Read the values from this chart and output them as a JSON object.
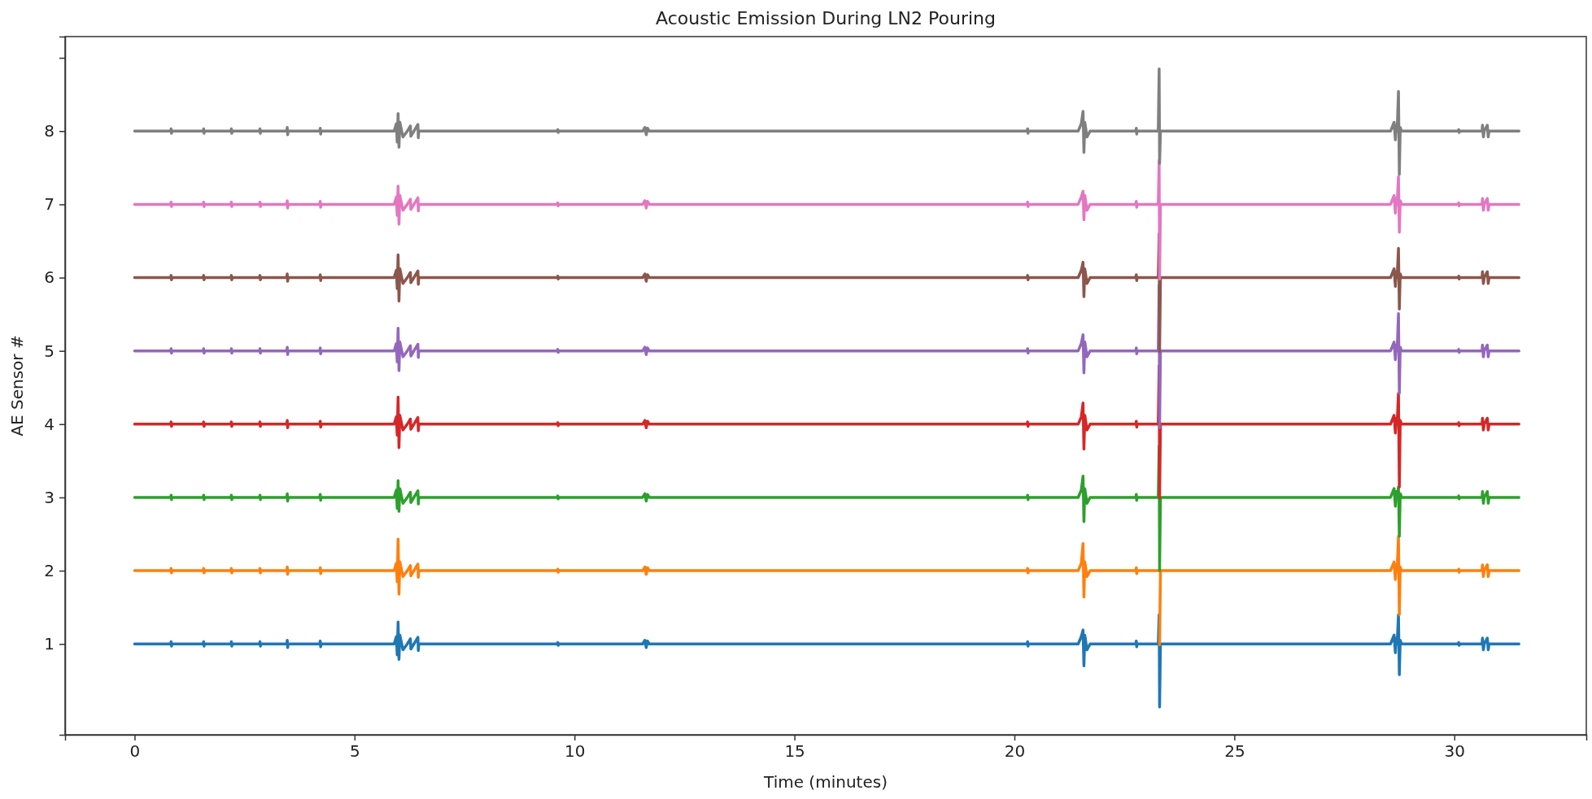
{
  "chart_data": {
    "type": "line",
    "title": "Acoustic Emission During LN2 Pouring",
    "xlabel": "Time (minutes)",
    "ylabel": "AE Sensor #",
    "xlim": [
      -1.58,
      33.0
    ],
    "ylim": [
      -0.24,
      9.29
    ],
    "xticks": [
      0,
      5,
      10,
      15,
      20,
      25,
      30
    ],
    "yticks": [
      1,
      2,
      3,
      4,
      5,
      6,
      7,
      8,
      {
        "value": 9,
        "label": null
      }
    ],
    "grid": false,
    "x": [
      0,
      0.82,
      0.83,
      0.84,
      0.85,
      1.56,
      1.57,
      1.58,
      1.59,
      2.19,
      2.2,
      2.21,
      2.22,
      2.84,
      2.85,
      2.86,
      2.87,
      3.46,
      3.47,
      3.48,
      3.49,
      4.21,
      4.22,
      4.23,
      4.24,
      5.9,
      5.95,
      5.97,
      5.99,
      6.01,
      6.03,
      6.1,
      6.2,
      6.27,
      6.28,
      6.35,
      6.44,
      6.45,
      6.46,
      9.61,
      9.62,
      9.63,
      9.64,
      11.55,
      11.6,
      11.63,
      11.66,
      11.7,
      20.29,
      20.3,
      20.31,
      20.32,
      21.45,
      21.52,
      21.56,
      21.58,
      21.6,
      21.65,
      21.72,
      22.76,
      22.77,
      22.78,
      22.79,
      23.27,
      23.29,
      23.3,
      23.32,
      28.55,
      28.63,
      28.66,
      28.68,
      28.7,
      28.73,
      28.75,
      28.77,
      28.8,
      30.09,
      30.1,
      30.11,
      30.12,
      30.63,
      30.64,
      30.66,
      30.68,
      30.75,
      30.77,
      30.79,
      31.47
    ],
    "series": [
      {
        "color": "#1f77b4",
        "values": [
          1,
          1,
          1.03,
          0.97,
          1,
          1,
          1.03,
          0.97,
          1,
          1,
          1.03,
          0.97,
          1,
          1,
          1.03,
          0.97,
          1,
          1,
          1.05,
          0.95,
          1,
          1,
          1.04,
          0.96,
          1,
          1,
          1.1,
          0.85,
          1.3,
          0.79,
          1.12,
          0.92,
          1,
          1.07,
          0.93,
          1,
          1.09,
          0.91,
          1,
          1,
          1.02,
          0.98,
          1,
          1,
          1.05,
          0.95,
          1.04,
          1,
          1,
          1.03,
          0.97,
          1,
          1,
          1.1,
          1.19,
          0.7,
          1.12,
          0.92,
          1,
          1,
          1.04,
          0.96,
          1,
          1,
          1.4,
          0.14,
          1,
          1,
          1.12,
          0.88,
          1.08,
          1,
          1.4,
          0.58,
          1.05,
          1,
          1,
          1.02,
          0.98,
          1,
          1,
          1.08,
          0.92,
          1,
          1.08,
          0.92,
          1,
          1
        ]
      },
      {
        "color": "#ff7f0e",
        "values": [
          2,
          2,
          2.03,
          1.97,
          2,
          2,
          2.03,
          1.97,
          2,
          2,
          2.03,
          1.97,
          2,
          2,
          2.03,
          1.97,
          2,
          2,
          2.05,
          1.95,
          2,
          2,
          2.04,
          1.96,
          2,
          2,
          2.1,
          1.85,
          2.43,
          1.68,
          2.12,
          1.92,
          2,
          2.07,
          1.93,
          2,
          2.09,
          1.91,
          2,
          2,
          2.02,
          1.98,
          2,
          2,
          2.05,
          1.95,
          2.04,
          2,
          2,
          2.03,
          1.97,
          2,
          2,
          2.1,
          2.37,
          1.64,
          2.12,
          1.92,
          2,
          2,
          2.04,
          1.96,
          2,
          2,
          null,
          0.99,
          2,
          2,
          2.12,
          1.88,
          2.08,
          2,
          2.47,
          1.4,
          2.05,
          2,
          2,
          2.02,
          1.98,
          2,
          2,
          2.08,
          1.92,
          2,
          2.08,
          1.92,
          2,
          2
        ]
      },
      {
        "color": "#2ca02c",
        "values": [
          3,
          3,
          3.03,
          2.97,
          3,
          3,
          3.03,
          2.97,
          3,
          3,
          3.03,
          2.97,
          3,
          3,
          3.03,
          2.97,
          3,
          3,
          3.05,
          2.95,
          3,
          3,
          3.04,
          2.96,
          3,
          3,
          3.1,
          2.85,
          3.23,
          2.81,
          3.12,
          2.92,
          3,
          3.07,
          2.93,
          3,
          3.09,
          2.91,
          3,
          3,
          3.02,
          2.98,
          3,
          3,
          3.05,
          2.95,
          3.04,
          3,
          3,
          3.03,
          2.97,
          3,
          3,
          3.1,
          3.29,
          2.67,
          3.12,
          2.92,
          3,
          3,
          3.04,
          2.96,
          3,
          3,
          3.7,
          2,
          3,
          3,
          3.12,
          2.88,
          3.08,
          3,
          3.14,
          2.47,
          3.05,
          3,
          3,
          3.02,
          2.98,
          3,
          3,
          3.08,
          2.92,
          3,
          3.08,
          2.92,
          3,
          3
        ]
      },
      {
        "color": "#d62728",
        "values": [
          4,
          4,
          4.03,
          3.97,
          4,
          4,
          4.03,
          3.97,
          4,
          4,
          4.03,
          3.97,
          4,
          4,
          4.03,
          3.97,
          4,
          4,
          4.05,
          3.95,
          4,
          4,
          4.04,
          3.96,
          4,
          4,
          4.1,
          3.85,
          4.37,
          3.68,
          4.12,
          3.92,
          4,
          4.07,
          3.93,
          4,
          4.09,
          3.91,
          4,
          4,
          4.02,
          3.98,
          4,
          4,
          4.05,
          3.95,
          4.04,
          4,
          4,
          4.03,
          3.97,
          4,
          4,
          4.1,
          4.29,
          3.66,
          4.12,
          3.92,
          4,
          4,
          4.04,
          3.96,
          4,
          4,
          4.8,
          2.99,
          4,
          4,
          4.12,
          3.88,
          4.08,
          4,
          4.42,
          3.14,
          4.05,
          4,
          4,
          4.02,
          3.98,
          4,
          4,
          4.08,
          3.92,
          4,
          4.08,
          3.92,
          4,
          4
        ]
      },
      {
        "color": "#9467bd",
        "values": [
          5,
          5,
          5.03,
          4.97,
          5,
          5,
          5.03,
          4.97,
          5,
          5,
          5.03,
          4.97,
          5,
          5,
          5.03,
          4.97,
          5,
          5,
          5.05,
          4.95,
          5,
          5,
          5.04,
          4.96,
          5,
          5,
          5.1,
          4.85,
          5.31,
          4.73,
          5.12,
          4.92,
          5,
          5.07,
          4.93,
          5,
          5.09,
          4.91,
          5,
          5,
          5.02,
          4.98,
          5,
          5,
          5.05,
          4.95,
          5.04,
          5,
          5,
          5.03,
          4.97,
          5,
          5,
          5.1,
          5.22,
          4.7,
          5.12,
          4.92,
          5,
          5,
          5.04,
          4.96,
          5,
          5,
          5.9,
          3.95,
          5,
          5,
          5.12,
          4.88,
          5.08,
          5,
          5.51,
          4.42,
          5.05,
          5,
          5,
          5.02,
          4.98,
          5,
          5,
          5.08,
          4.92,
          5,
          5.08,
          4.92,
          5,
          5
        ]
      },
      {
        "color": "#8c564b",
        "values": [
          6,
          6,
          6.03,
          5.97,
          6,
          6,
          6.03,
          5.97,
          6,
          6,
          6.03,
          5.97,
          6,
          6,
          6.03,
          5.97,
          6,
          6,
          6.05,
          5.95,
          6,
          6,
          6.04,
          5.96,
          6,
          6,
          6.1,
          5.85,
          6.31,
          5.68,
          6.12,
          5.92,
          6,
          6.07,
          5.93,
          6,
          6.09,
          5.91,
          6,
          6,
          6.02,
          5.98,
          6,
          6,
          6.05,
          5.95,
          6.04,
          6,
          6,
          6.03,
          5.97,
          6,
          6,
          6.1,
          6.21,
          5.74,
          6.12,
          5.92,
          6,
          6,
          6.04,
          5.96,
          6,
          6,
          6.6,
          4.99,
          6,
          6,
          6.12,
          5.88,
          6.08,
          6,
          6.4,
          5.57,
          6.05,
          6,
          6,
          6.02,
          5.98,
          6,
          6,
          6.08,
          5.92,
          6,
          6.08,
          5.92,
          6,
          6
        ]
      },
      {
        "color": "#e377c2",
        "values": [
          7,
          7,
          7.03,
          6.97,
          7,
          7,
          7.03,
          6.97,
          7,
          7,
          7.03,
          6.97,
          7,
          7,
          7.03,
          6.97,
          7,
          7,
          7.05,
          6.95,
          7,
          7,
          7.04,
          6.96,
          7,
          7,
          7.1,
          6.85,
          7.25,
          6.73,
          7.12,
          6.92,
          7,
          7.07,
          6.93,
          7,
          7.09,
          6.91,
          7,
          7,
          7.02,
          6.98,
          7,
          7,
          7.05,
          6.95,
          7.04,
          7,
          7,
          7.03,
          6.97,
          7,
          7,
          7.1,
          7.18,
          6.79,
          7.12,
          6.92,
          7,
          7,
          7.04,
          6.96,
          7,
          7,
          7.6,
          5.98,
          7,
          7,
          7.12,
          6.88,
          7.08,
          7,
          7.38,
          6.62,
          7.05,
          7,
          7,
          7.02,
          6.98,
          7,
          7,
          7.08,
          6.92,
          7,
          7.08,
          6.92,
          7,
          7
        ]
      },
      {
        "color": "#7f7f7f",
        "values": [
          8,
          8,
          8.03,
          7.97,
          8,
          8,
          8.03,
          7.97,
          8,
          8,
          8.03,
          7.97,
          8,
          8,
          8.03,
          7.97,
          8,
          8,
          8.05,
          7.95,
          8,
          8,
          8.04,
          7.96,
          8,
          8,
          8.1,
          7.85,
          8.24,
          7.78,
          8.12,
          7.92,
          8,
          8.07,
          7.93,
          8,
          8.09,
          7.91,
          8,
          8,
          8.02,
          7.98,
          8,
          8,
          8.05,
          7.95,
          8.04,
          8,
          8,
          8.03,
          7.97,
          8,
          8,
          8.1,
          8.27,
          7.71,
          8.12,
          7.92,
          8,
          8,
          8.04,
          7.96,
          8,
          8,
          8.85,
          7.56,
          8,
          8,
          8.12,
          7.88,
          8.08,
          8,
          8.54,
          7.41,
          8.05,
          8,
          8,
          8.02,
          7.98,
          8,
          8,
          8.08,
          7.92,
          8,
          8.08,
          7.92,
          8,
          8
        ]
      }
    ]
  }
}
